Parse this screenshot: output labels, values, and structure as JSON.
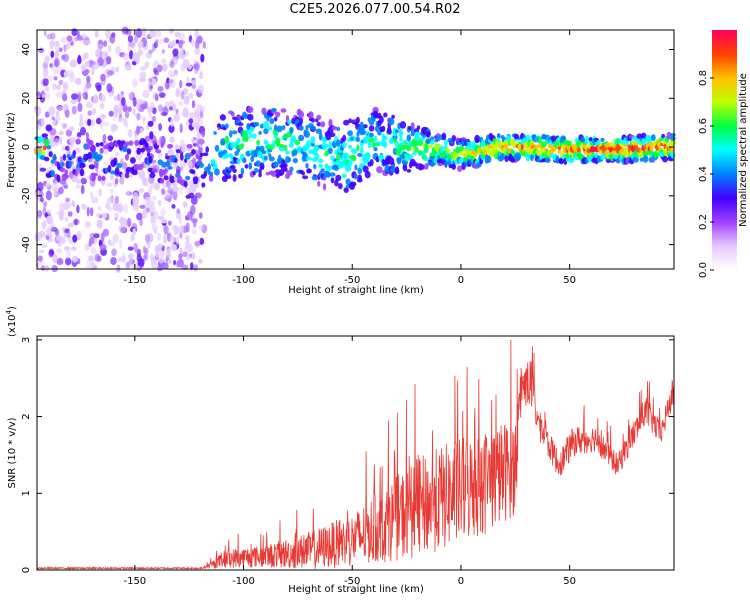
{
  "title": "C2E5.2026.077.00.54.R02",
  "colors": {
    "snr_line": "#e83a34",
    "spec_band_core": "#ff2020",
    "spec_noise": "#7a1fff"
  },
  "chart_data": [
    {
      "type": "heatmap",
      "name": "spectrogram",
      "xlabel": "Height of straight line (km)",
      "ylabel": "Frequency (Hz)",
      "xlim": [
        -195,
        98
      ],
      "ylim": [
        -50,
        48
      ],
      "x_ticks": [
        -150,
        -100,
        -50,
        0,
        50
      ],
      "y_ticks": [
        -40,
        -20,
        0,
        20,
        40
      ],
      "colorbar": {
        "label": "Normalized spectral amplitude",
        "range": [
          0.0,
          1.0
        ],
        "ticks": [
          "0.0",
          "0.2",
          "0.4",
          "0.6",
          "0.8"
        ],
        "tick_values": [
          0.0,
          0.2,
          0.4,
          0.6,
          0.8
        ],
        "colors": [
          "#ffffff",
          "#e6c8ff",
          "#a040ff",
          "#4000ff",
          "#0080ff",
          "#00ffff",
          "#00ff40",
          "#c0ff00",
          "#ffc000",
          "#ff4000",
          "#ff0060"
        ]
      },
      "noise_region_x": [
        -195,
        -118
      ],
      "band": [
        {
          "x": -190,
          "center": -5,
          "width": 8,
          "amp": 0.25
        },
        {
          "x": -150,
          "center": -5,
          "width": 8,
          "amp": 0.2
        },
        {
          "x": -120,
          "center": -8,
          "width": 8,
          "amp": 0.22
        },
        {
          "x": -110,
          "center": 0,
          "width": 14,
          "amp": 0.4
        },
        {
          "x": -90,
          "center": 3,
          "width": 14,
          "amp": 0.5
        },
        {
          "x": -70,
          "center": 0,
          "width": 14,
          "amp": 0.45
        },
        {
          "x": -55,
          "center": -5,
          "width": 14,
          "amp": 0.45
        },
        {
          "x": -40,
          "center": 2,
          "width": 14,
          "amp": 0.45
        },
        {
          "x": -25,
          "center": 0,
          "width": 10,
          "amp": 0.5
        },
        {
          "x": -10,
          "center": -1,
          "width": 6,
          "amp": 0.6
        },
        {
          "x": 0,
          "center": -3,
          "width": 6,
          "amp": 0.65
        },
        {
          "x": 20,
          "center": 0,
          "width": 5,
          "amp": 0.85
        },
        {
          "x": 50,
          "center": -1,
          "width": 5,
          "amp": 0.85
        },
        {
          "x": 70,
          "center": -1,
          "width": 5,
          "amp": 0.9
        },
        {
          "x": 97,
          "center": 0,
          "width": 5,
          "amp": 0.9
        }
      ]
    },
    {
      "type": "line",
      "name": "snr",
      "xlabel": "Height of straight line (km)",
      "ylabel": "SNR (10 * v/v)",
      "exponent_label": "(x10",
      "exponent_power": "4",
      "exponent_close": ")",
      "xlim": [
        -195,
        98
      ],
      "ylim": [
        0,
        3.05
      ],
      "x_ticks": [
        -150,
        -100,
        -50,
        0,
        50
      ],
      "y_ticks": [
        0,
        1,
        2,
        3
      ],
      "envelope": [
        {
          "x": -195,
          "base": 0.02,
          "spread": 0.02
        },
        {
          "x": -118,
          "base": 0.02,
          "spread": 0.02
        },
        {
          "x": -108,
          "base": 0.1,
          "spread": 0.25
        },
        {
          "x": -90,
          "base": 0.12,
          "spread": 0.3
        },
        {
          "x": -70,
          "base": 0.15,
          "spread": 0.5
        },
        {
          "x": -50,
          "base": 0.25,
          "spread": 0.7
        },
        {
          "x": -35,
          "base": 0.4,
          "spread": 1.0
        },
        {
          "x": -20,
          "base": 0.55,
          "spread": 1.3
        },
        {
          "x": -5,
          "base": 0.7,
          "spread": 1.4
        },
        {
          "x": 10,
          "base": 0.85,
          "spread": 1.4
        },
        {
          "x": 25,
          "base": 1.1,
          "spread": 1.3
        },
        {
          "x": 28,
          "base": 2.3,
          "spread": 0.5
        },
        {
          "x": 32,
          "base": 2.3,
          "spread": 0.7
        },
        {
          "x": 36,
          "base": 1.8,
          "spread": 0.4
        },
        {
          "x": 45,
          "base": 1.3,
          "spread": 0.35
        },
        {
          "x": 52,
          "base": 1.6,
          "spread": 0.4
        },
        {
          "x": 62,
          "base": 1.65,
          "spread": 0.35
        },
        {
          "x": 72,
          "base": 1.3,
          "spread": 0.3
        },
        {
          "x": 85,
          "base": 2.0,
          "spread": 0.4
        },
        {
          "x": 92,
          "base": 1.7,
          "spread": 0.3
        },
        {
          "x": 97,
          "base": 2.2,
          "spread": 0.4
        }
      ]
    }
  ]
}
